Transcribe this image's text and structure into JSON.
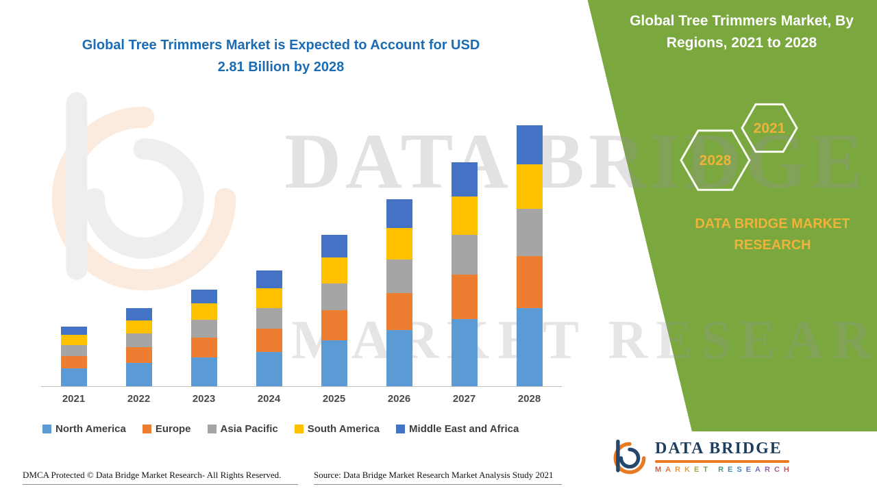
{
  "title_block": {
    "line1": "Global Tree Trimmers Market is Expected to Account for USD",
    "line2": "2.81 Billion by 2028"
  },
  "green_panel": {
    "title": "Global Tree Trimmers Market, By Regions, 2021 to 2028",
    "hexagon_back_year": "2021",
    "hexagon_front_year": "2028",
    "brand_text": "DATA BRIDGE MARKET RESEARCH",
    "background_color": "#7aa73e",
    "accent_text_color": "#eeb33b"
  },
  "watermark": {
    "line1": "DATA BRIDGE",
    "line2": "MARKET RESEARCH"
  },
  "footer": {
    "dmca": "DMCA Protected © Data Bridge Market Research- All Rights Reserved.",
    "source": "Source: Data Bridge Market Research Market Analysis Study 2021"
  },
  "logo": {
    "name": "DATA BRIDGE",
    "tagline": "MARKET RESEARCH"
  },
  "chart_data": {
    "type": "bar",
    "stacked": true,
    "title": "Global Tree Trimmers Market is Expected to Account for USD 2.81 Billion by 2028",
    "unit": "USD Billion",
    "categories": [
      "2021",
      "2022",
      "2023",
      "2024",
      "2025",
      "2026",
      "2027",
      "2028"
    ],
    "series": [
      {
        "name": "North America",
        "color": "#5B9BD5",
        "values": [
          0.19,
          0.25,
          0.31,
          0.37,
          0.49,
          0.6,
          0.72,
          0.84
        ]
      },
      {
        "name": "Europe",
        "color": "#ED7D31",
        "values": [
          0.13,
          0.17,
          0.21,
          0.25,
          0.32,
          0.4,
          0.48,
          0.56
        ]
      },
      {
        "name": "Asia Pacific",
        "color": "#A5A5A5",
        "values": [
          0.12,
          0.15,
          0.19,
          0.22,
          0.29,
          0.36,
          0.43,
          0.51
        ]
      },
      {
        "name": "South America",
        "color": "#FFC000",
        "values": [
          0.11,
          0.14,
          0.18,
          0.21,
          0.28,
          0.34,
          0.41,
          0.48
        ]
      },
      {
        "name": "Middle East and Africa",
        "color": "#4472C4",
        "values": [
          0.09,
          0.13,
          0.15,
          0.19,
          0.24,
          0.31,
          0.37,
          0.42
        ]
      }
    ],
    "totals": [
      0.64,
      0.84,
      1.04,
      1.24,
      1.62,
      2.01,
      2.41,
      2.81
    ],
    "ylim": [
      0,
      3.0
    ],
    "grid": false,
    "y_axis_visible": false,
    "legend_position": "bottom"
  }
}
